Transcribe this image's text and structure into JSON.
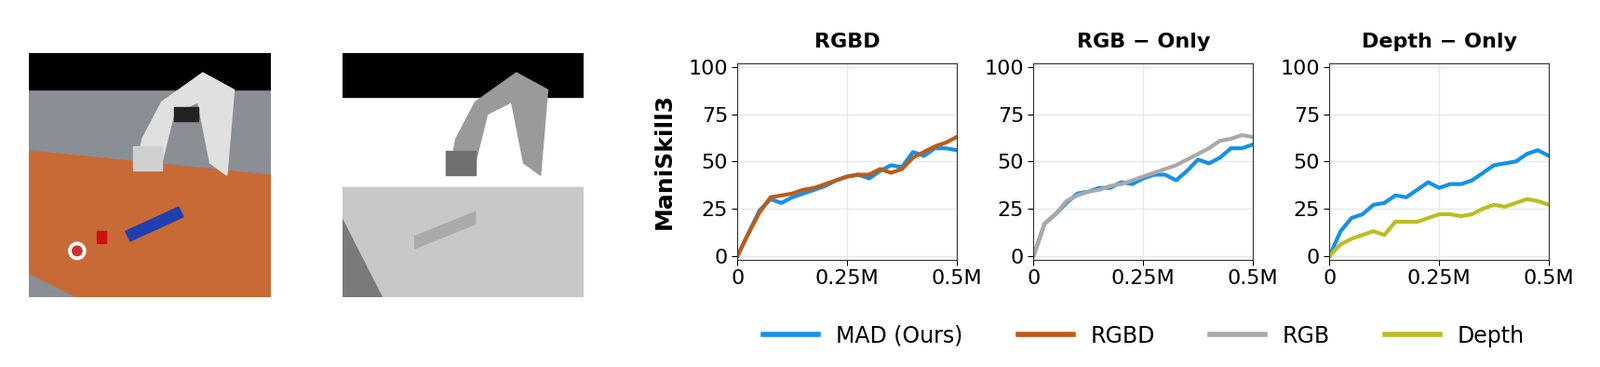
{
  "chart_data": [
    {
      "type": "line",
      "title": "RGBD",
      "ylabel": "ManiSkill3",
      "x": [
        0,
        25000,
        50000,
        75000,
        100000,
        125000,
        150000,
        175000,
        200000,
        225000,
        250000,
        275000,
        300000,
        325000,
        350000,
        375000,
        400000,
        425000,
        450000,
        475000,
        500000
      ],
      "series": [
        {
          "name": "MAD (Ours)",
          "color": "#1591ea",
          "values": [
            0,
            12,
            24,
            30,
            28,
            31,
            33,
            35,
            37,
            40,
            42,
            43,
            41,
            45,
            48,
            47,
            55,
            53,
            57,
            57,
            56
          ]
        },
        {
          "name": "RGBD",
          "color": "#bf5b17",
          "values": [
            0,
            12,
            23,
            31,
            32,
            33,
            35,
            36,
            38,
            40,
            42,
            43,
            43,
            46,
            44,
            46,
            52,
            55,
            58,
            60,
            63
          ]
        }
      ],
      "xlim": [
        0,
        500000
      ],
      "ylim": [
        -2,
        102
      ],
      "xticks": [
        {
          "value": 0,
          "label": "0"
        },
        {
          "value": 250000,
          "label": "0.25M"
        },
        {
          "value": 500000,
          "label": "0.5M"
        }
      ],
      "yticks": [
        0,
        25,
        50,
        75,
        100
      ],
      "grid": true,
      "legend": "lower center"
    },
    {
      "type": "line",
      "title": "RGB − Only",
      "x": [
        0,
        25000,
        50000,
        75000,
        100000,
        125000,
        150000,
        175000,
        200000,
        225000,
        250000,
        275000,
        300000,
        325000,
        350000,
        375000,
        400000,
        425000,
        450000,
        475000,
        500000
      ],
      "series": [
        {
          "name": "MAD (Ours)",
          "color": "#1591ea",
          "values": [
            0,
            17,
            22,
            28,
            33,
            34,
            36,
            36,
            39,
            38,
            41,
            43,
            43,
            40,
            45,
            51,
            49,
            52,
            57,
            57,
            59
          ]
        },
        {
          "name": "RGB",
          "color": "#a9a9a9",
          "values": [
            0,
            17,
            22,
            29,
            32,
            34,
            35,
            37,
            38,
            40,
            42,
            44,
            46,
            48,
            51,
            54,
            57,
            61,
            62,
            64,
            63
          ]
        }
      ],
      "xlim": [
        0,
        500000
      ],
      "ylim": [
        -2,
        102
      ],
      "xticks": [
        {
          "value": 0,
          "label": "0"
        },
        {
          "value": 250000,
          "label": "0.25M"
        },
        {
          "value": 500000,
          "label": "0.5M"
        }
      ],
      "yticks": [
        0,
        25,
        50,
        75,
        100
      ],
      "grid": true
    },
    {
      "type": "line",
      "title": "Depth − Only",
      "x": [
        0,
        25000,
        50000,
        75000,
        100000,
        125000,
        150000,
        175000,
        200000,
        225000,
        250000,
        275000,
        300000,
        325000,
        350000,
        375000,
        400000,
        425000,
        450000,
        475000,
        500000
      ],
      "series": [
        {
          "name": "MAD (Ours)",
          "color": "#1591ea",
          "values": [
            0,
            13,
            20,
            22,
            27,
            28,
            32,
            31,
            35,
            39,
            36,
            38,
            38,
            40,
            44,
            48,
            49,
            50,
            54,
            56,
            53
          ]
        },
        {
          "name": "Depth",
          "color": "#bcbd22",
          "values": [
            0,
            6,
            9,
            11,
            13,
            11,
            18,
            18,
            18,
            20,
            22,
            22,
            21,
            22,
            25,
            27,
            26,
            28,
            30,
            29,
            27
          ]
        }
      ],
      "xlim": [
        0,
        500000
      ],
      "ylim": [
        -2,
        102
      ],
      "xticks": [
        {
          "value": 0,
          "label": "0"
        },
        {
          "value": 250000,
          "label": "0.25M"
        },
        {
          "value": 500000,
          "label": "0.5M"
        }
      ],
      "yticks": [
        0,
        25,
        50,
        75,
        100
      ],
      "grid": true
    }
  ]
}
